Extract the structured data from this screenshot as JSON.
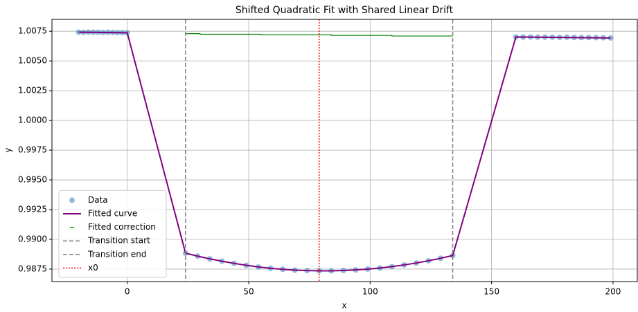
{
  "chart_data": {
    "type": "line",
    "title": "Shifted Quadratic Fit with Shared Linear Drift",
    "x_label": "x",
    "y_label": "y",
    "xlim": [
      -31,
      210
    ],
    "xticks": [
      0,
      50,
      100,
      150,
      200
    ],
    "ylim": [
      0.98645,
      1.0085
    ],
    "yticks": [
      {
        "value": 0.9875,
        "label": "0.9875"
      },
      {
        "value": 0.99,
        "label": "0.9900"
      },
      {
        "value": 0.9925,
        "label": "0.9925"
      },
      {
        "value": 0.995,
        "label": "0.9950"
      },
      {
        "value": 0.9975,
        "label": "0.9975"
      },
      {
        "value": 1.0,
        "label": "1.0000"
      },
      {
        "value": 1.0025,
        "label": "1.0025"
      },
      {
        "value": 1.005,
        "label": "1.0050"
      },
      {
        "value": 1.0075,
        "label": "1.0075"
      }
    ],
    "grid": true,
    "legend": "lower left",
    "series": [
      {
        "name": "Data",
        "marker": "o",
        "color": "#1f77b4",
        "x": [
          -20,
          -18,
          -16,
          -14,
          -12,
          -10,
          -8,
          -6,
          -4,
          -2,
          0,
          24,
          29,
          34,
          39,
          44,
          49,
          54,
          59,
          64,
          69,
          74,
          79,
          84,
          89,
          94,
          99,
          104,
          109,
          114,
          119,
          124,
          129,
          134,
          160,
          163,
          166,
          169,
          172,
          175,
          178,
          181,
          184,
          187,
          190,
          193,
          196,
          199
        ],
        "values": [
          1.00742,
          1.00741,
          1.00743,
          1.00742,
          1.00741,
          1.0074,
          1.00741,
          1.0074,
          1.00739,
          1.00738,
          1.00737,
          0.98884,
          0.98859,
          0.98836,
          0.98816,
          0.98798,
          0.98782,
          0.98768,
          0.98757,
          0.98748,
          0.98741,
          0.98737,
          0.98735,
          0.98735,
          0.98738,
          0.98743,
          0.9875,
          0.98759,
          0.98771,
          0.98785,
          0.98801,
          0.9882,
          0.98841,
          0.98864,
          1.00702,
          1.00701,
          1.00702,
          1.007,
          1.00701,
          1.007,
          1.00699,
          1.007,
          1.00698,
          1.00697,
          1.00697,
          1.00696,
          1.00695,
          1.00694
        ]
      },
      {
        "name": "Fitted curve",
        "linestyle": "solid",
        "color": "#800080",
        "x": [
          -20,
          0,
          24,
          29,
          34,
          39,
          44,
          49,
          54,
          59,
          64,
          69,
          74,
          79,
          84,
          89,
          94,
          99,
          104,
          109,
          114,
          119,
          124,
          129,
          134,
          160,
          199
        ],
        "values": [
          1.00742,
          1.00737,
          0.98884,
          0.98859,
          0.98836,
          0.98816,
          0.98798,
          0.98782,
          0.98768,
          0.98757,
          0.98748,
          0.98741,
          0.98737,
          0.98735,
          0.98735,
          0.98738,
          0.98743,
          0.9875,
          0.98759,
          0.98771,
          0.98785,
          0.98801,
          0.9882,
          0.98841,
          0.98864,
          1.00702,
          1.00694
        ]
      },
      {
        "name": "Fitted correction",
        "linestyle": "thin",
        "color": "#008000",
        "x": [
          24,
          30,
          30,
          55,
          55,
          84,
          84,
          109,
          109,
          134
        ],
        "values": [
          1.0073,
          1.0073,
          1.00725,
          1.00725,
          1.0072,
          1.0072,
          1.00715,
          1.00715,
          1.0071,
          1.0071
        ]
      }
    ],
    "vlines": [
      {
        "name": "Transition start",
        "x": 24,
        "color": "#808080",
        "linestyle": "dashed"
      },
      {
        "name": "Transition end",
        "x": 134,
        "color": "#808080",
        "linestyle": "dashed"
      },
      {
        "name": "x0",
        "x": 79,
        "color": "#ff0000",
        "linestyle": "dotted"
      }
    ]
  }
}
